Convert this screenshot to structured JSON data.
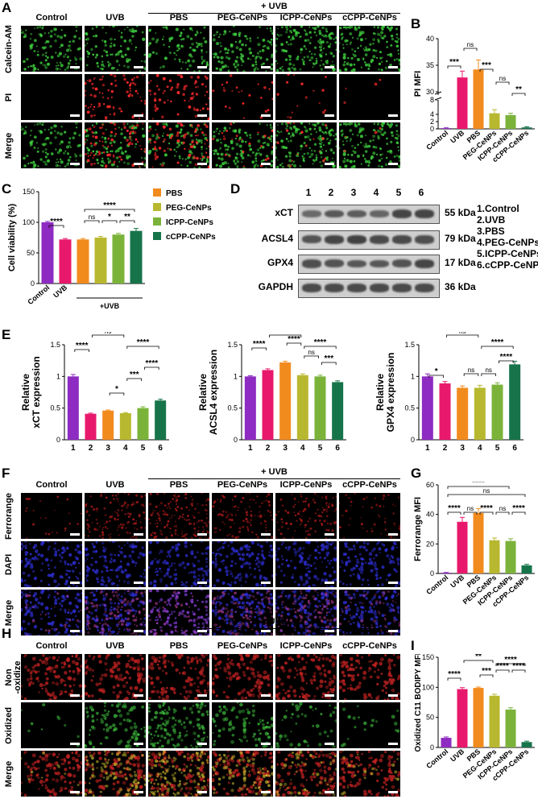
{
  "panels": {
    "A": {
      "label": "A",
      "uvb_group": "+ UVB",
      "columns": [
        "Control",
        "UVB",
        "PBS",
        "PEG-CeNPs",
        "ICPP-CeNPs",
        "cCPP-CeNPs"
      ],
      "rows": [
        "Calcein-AM",
        "PI",
        "Merge"
      ]
    },
    "B": {
      "label": "B"
    },
    "C": {
      "label": "C",
      "legend": [
        "PBS",
        "PEG-CeNPs",
        "ICPP-CeNPs",
        "cCPP-CeNPs"
      ]
    },
    "D": {
      "label": "D",
      "lanes": [
        "1",
        "2",
        "3",
        "4",
        "5",
        "6"
      ],
      "proteins": [
        "xCT",
        "ACSL4",
        "GPX4",
        "GAPDH"
      ],
      "kda": [
        "55 kDa",
        "79 kDa",
        "17 kDa",
        "36 kDa"
      ],
      "legend": [
        "1.Control",
        "2.UVB",
        "3.PBS",
        "4.PEG-CeNPs",
        "5.ICPP-CeNPs",
        "6.cCPP-CeNPs"
      ]
    },
    "E": {
      "label": "E"
    },
    "F": {
      "label": "F",
      "uvb_group": "+ UVB",
      "columns": [
        "Control",
        "UVB",
        "PBS",
        "PEG-CeNPs",
        "ICPP-CeNPs",
        "cCPP-CeNPs"
      ],
      "rows": [
        "Ferrorange",
        "DAPI",
        "Merge"
      ]
    },
    "G": {
      "label": "G"
    },
    "H": {
      "label": "H",
      "uvb_group": "+ UVB",
      "columns": [
        "Control",
        "UVB",
        "PBS",
        "PEG-CeNPs",
        "ICPP-CeNPs",
        "cCPP-CeNPs"
      ],
      "rows": [
        "Non\n-oxidize",
        "Oxidized",
        "Merge"
      ]
    },
    "I": {
      "label": "I"
    }
  },
  "colors": {
    "Control": "#8e2bc2",
    "UVB": "#e8196c",
    "PBS": "#f28b1e",
    "PEG-CeNPs": "#b8b830",
    "ICPP-CeNPs": "#7bb33a",
    "cCPP-CeNPs": "#17744a"
  },
  "chart_data": [
    {
      "id": "B",
      "type": "bar",
      "ylabel": "PI MFI",
      "categories": [
        "Control",
        "UVB",
        "PBS",
        "PEG-CeNPs",
        "ICPP-CeNPs",
        "cCPP-CeNPs"
      ],
      "values": [
        0.2,
        32.7,
        34.2,
        4.3,
        3.8,
        0.4
      ],
      "errors": [
        0.1,
        1.2,
        1.8,
        1.0,
        0.5,
        0.2
      ],
      "axis_break": [
        8,
        30
      ],
      "yticks": [
        0,
        2,
        4,
        8,
        30,
        35,
        40
      ],
      "significance": [
        {
          "a": 0,
          "b": 1,
          "label": "***"
        },
        {
          "a": 1,
          "b": 2,
          "label": "ns"
        },
        {
          "a": 2,
          "b": 3,
          "label": "***"
        },
        {
          "a": 3,
          "b": 4,
          "label": "ns"
        },
        {
          "a": 4,
          "b": 5,
          "label": "**"
        }
      ]
    },
    {
      "id": "C",
      "type": "bar",
      "ylabel": "Cell viability (%)",
      "categories": [
        "Control",
        "UVB",
        "PBS",
        "PEG-CeNPs",
        "ICPP-CeNPs",
        "cCPP-CeNPs"
      ],
      "xticklabels": [
        "Control",
        "UVB",
        "",
        "",
        "",
        ""
      ],
      "group_label": "+UVB",
      "values": [
        100,
        72,
        72,
        75,
        80,
        86
      ],
      "errors": [
        1.5,
        1.5,
        1.5,
        2,
        2,
        4
      ],
      "ylim": [
        0,
        150
      ],
      "yticks": [
        0,
        50,
        100,
        150
      ],
      "significance": [
        {
          "a": 0,
          "b": 1,
          "label": "****"
        },
        {
          "a": 2,
          "b": 3,
          "label": "ns"
        },
        {
          "a": 3,
          "b": 4,
          "label": "*"
        },
        {
          "a": 4,
          "b": 5,
          "label": "**"
        },
        {
          "a": 2,
          "b": 5,
          "label": "****"
        }
      ]
    },
    {
      "id": "E1",
      "type": "bar",
      "ylabel": "Relative\nxCT expression",
      "categories": [
        "1",
        "2",
        "3",
        "4",
        "5",
        "6"
      ],
      "values": [
        1.0,
        0.41,
        0.46,
        0.42,
        0.5,
        0.62
      ],
      "errors": [
        0.03,
        0.01,
        0.01,
        0.01,
        0.02,
        0.02
      ],
      "ylim": [
        0,
        1.5
      ],
      "yticks": [
        0,
        0.5,
        1.0,
        1.5
      ],
      "significance": [
        {
          "a": 0,
          "b": 1,
          "label": "****"
        },
        {
          "a": 2,
          "b": 3,
          "label": "*"
        },
        {
          "a": 3,
          "b": 4,
          "label": "***"
        },
        {
          "a": 4,
          "b": 5,
          "label": "****"
        },
        {
          "a": 1,
          "b": 3,
          "label": "ns"
        },
        {
          "a": 3,
          "b": 5,
          "label": "****"
        }
      ]
    },
    {
      "id": "E2",
      "type": "bar",
      "ylabel": "Relative\nACSL4 expression",
      "categories": [
        "1",
        "2",
        "3",
        "4",
        "5",
        "6"
      ],
      "values": [
        1.0,
        1.1,
        1.22,
        1.02,
        1.0,
        0.91
      ],
      "errors": [
        0.01,
        0.02,
        0.02,
        0.02,
        0.02,
        0.02
      ],
      "ylim": [
        0,
        1.5
      ],
      "yticks": [
        0,
        0.5,
        1.0,
        1.5
      ],
      "significance": [
        {
          "a": 0,
          "b": 1,
          "label": "****"
        },
        {
          "a": 2,
          "b": 3,
          "label": "****"
        },
        {
          "a": 3,
          "b": 4,
          "label": "ns"
        },
        {
          "a": 4,
          "b": 5,
          "label": "***"
        },
        {
          "a": 1,
          "b": 3,
          "label": "***"
        },
        {
          "a": 3,
          "b": 5,
          "label": "****"
        }
      ]
    },
    {
      "id": "E3",
      "type": "bar",
      "ylabel": "Relative\nGPX4 expression",
      "categories": [
        "1",
        "2",
        "3",
        "4",
        "5",
        "6"
      ],
      "values": [
        1.0,
        0.89,
        0.82,
        0.82,
        0.87,
        1.19
      ],
      "errors": [
        0.04,
        0.03,
        0.03,
        0.04,
        0.03,
        0.05
      ],
      "ylim": [
        0,
        1.5
      ],
      "yticks": [
        0,
        0.5,
        1.0,
        1.5
      ],
      "significance": [
        {
          "a": 0,
          "b": 1,
          "label": "*"
        },
        {
          "a": 2,
          "b": 3,
          "label": "ns"
        },
        {
          "a": 3,
          "b": 4,
          "label": "ns"
        },
        {
          "a": 4,
          "b": 5,
          "label": "****"
        },
        {
          "a": 1,
          "b": 3,
          "label": "ns"
        },
        {
          "a": 3,
          "b": 5,
          "label": "****"
        }
      ]
    },
    {
      "id": "G",
      "type": "bar",
      "ylabel": "Ferrorange MFI",
      "categories": [
        "Control",
        "UVB",
        "PBS",
        "PEG-CeNPs",
        "ICPP-CeNPs",
        "cCPP-CeNPs"
      ],
      "values": [
        0.5,
        35,
        41,
        22.5,
        22,
        5.5
      ],
      "errors": [
        0.2,
        3,
        3,
        1.5,
        1.5,
        0.7
      ],
      "ylim": [
        0,
        60
      ],
      "yticks": [
        0,
        20,
        40,
        60
      ],
      "significance": [
        {
          "a": 0,
          "b": 1,
          "label": "****"
        },
        {
          "a": 1,
          "b": 2,
          "label": "ns"
        },
        {
          "a": 2,
          "b": 3,
          "label": "****"
        },
        {
          "a": 3,
          "b": 4,
          "label": "ns"
        },
        {
          "a": 4,
          "b": 5,
          "label": "****"
        },
        {
          "a": 0,
          "b": 2,
          "label": "****"
        },
        {
          "a": 0,
          "b": 3,
          "label": "****"
        },
        {
          "a": 0,
          "b": 4,
          "label": "****"
        },
        {
          "a": 0,
          "b": 5,
          "label": "ns"
        }
      ]
    },
    {
      "id": "I",
      "type": "bar",
      "ylabel": "Oxidized C11 BODIPY MFI",
      "categories": [
        "Control",
        "UVB",
        "PBS",
        "PEG-CeNPs",
        "ICPP-CeNPs",
        "cCPP-CeNPs"
      ],
      "values": [
        16,
        97,
        99,
        86,
        63,
        9
      ],
      "errors": [
        1.5,
        2.5,
        1.5,
        2.5,
        3,
        1.5
      ],
      "ylim": [
        0,
        150
      ],
      "yticks": [
        0,
        50,
        100,
        150
      ],
      "significance": [
        {
          "a": 0,
          "b": 1,
          "label": "****"
        },
        {
          "a": 2,
          "b": 3,
          "label": "***"
        },
        {
          "a": 3,
          "b": 4,
          "label": "****"
        },
        {
          "a": 4,
          "b": 5,
          "label": "****"
        },
        {
          "a": 1,
          "b": 3,
          "label": "**"
        },
        {
          "a": 3,
          "b": 5,
          "label": "****"
        }
      ]
    }
  ]
}
